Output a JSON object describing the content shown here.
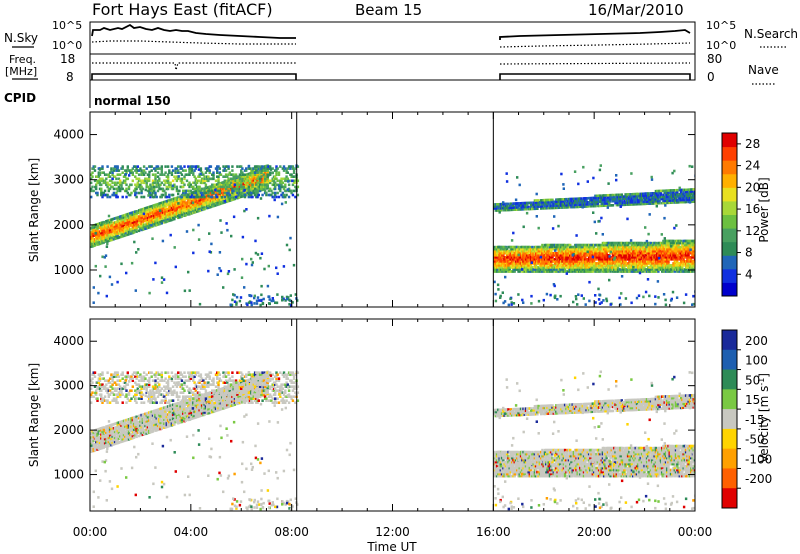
{
  "header": {
    "title": "Fort Hays East (fitACF)",
    "beam": "Beam 15",
    "date": "16/Mar/2010"
  },
  "panels": {
    "noise": {
      "left_label": "N.Sky",
      "right_label": "N.Search",
      "left_ticks": [
        "10^5",
        "10^0"
      ],
      "right_ticks": [
        "10^5",
        "10^0"
      ]
    },
    "freq": {
      "left_label_1": "Freq.",
      "left_label_2": "[MHz]",
      "right_label": "Nave",
      "left_ticks": [
        "18",
        "8"
      ],
      "right_ticks": [
        "80",
        "0"
      ]
    },
    "cpid": {
      "label": "CPID",
      "mode": "normal 150"
    }
  },
  "chart_data": [
    {
      "type": "heatmap",
      "name": "power",
      "ylabel": "Slant Range [km]",
      "xlabel": "Time UT",
      "xlim_hours": [
        0,
        24
      ],
      "ylim": [
        180,
        4500
      ],
      "yticks": [
        1000,
        2000,
        3000,
        4000
      ],
      "colorbar": {
        "label": "Power [dB]",
        "ticks": [
          4,
          8,
          12,
          16,
          20,
          24,
          28
        ],
        "colors": [
          "#0000cc",
          "#1030e0",
          "#2066b8",
          "#2e8b57",
          "#48a060",
          "#6cc040",
          "#a8d838",
          "#e8e020",
          "#ffb000",
          "#ff7a00",
          "#ff4000",
          "#e00000"
        ]
      },
      "data_gap_hours": [
        8.2,
        16.0
      ],
      "echo_regions": [
        {
          "name": "main-band-morning",
          "t_start": 0.0,
          "t_end": 7.0,
          "range_start": [
            1500,
            1950
          ],
          "range_end": [
            2800,
            3300
          ],
          "power_db": 26
        },
        {
          "name": "upper-scatter-morning",
          "t_start": 0.0,
          "t_end": 8.2,
          "range": [
            2600,
            3300
          ],
          "power_db": 14
        },
        {
          "name": "evening-main-band",
          "t_start": 16.0,
          "t_end": 24.0,
          "range_start": [
            950,
            1500
          ],
          "range_end": [
            950,
            1650
          ],
          "power_db": 28
        },
        {
          "name": "evening-upper-band",
          "t_start": 16.0,
          "t_end": 24.0,
          "range_start": [
            2300,
            2450
          ],
          "range_end": [
            2500,
            2800
          ],
          "power_db": 6
        }
      ]
    },
    {
      "type": "heatmap",
      "name": "velocity",
      "ylabel": "Slant Range [km]",
      "xlabel": "Time UT",
      "xlim_hours": [
        0,
        24
      ],
      "ylim": [
        180,
        4500
      ],
      "yticks": [
        1000,
        2000,
        3000,
        4000
      ],
      "colorbar": {
        "label": "Velocity [m s^-1]",
        "ticks": [
          200,
          100,
          50,
          15,
          -15,
          -50,
          -100,
          -200
        ],
        "colors": [
          "#1a2a9a",
          "#1e5fb0",
          "#2e8b57",
          "#7ac943",
          "#c8c8c0",
          "#ffd400",
          "#ffa000",
          "#ff6000",
          "#e00000"
        ]
      },
      "xticks": [
        "00:00",
        "04:00",
        "08:00",
        "12:00",
        "16:00",
        "20:00",
        "00:00"
      ]
    }
  ]
}
